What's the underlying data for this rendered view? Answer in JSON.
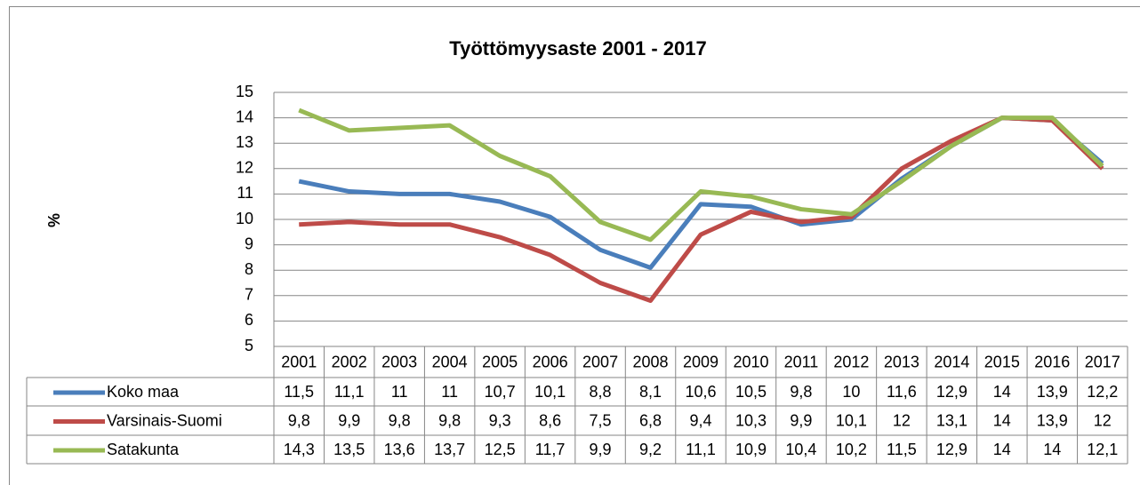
{
  "chart_data": {
    "type": "line",
    "title": "Työttömyysaste 2001 - 2017",
    "y_label": "%",
    "categories": [
      "2001",
      "2002",
      "2003",
      "2004",
      "2005",
      "2006",
      "2007",
      "2008",
      "2009",
      "2010",
      "2011",
      "2012",
      "2013",
      "2014",
      "2015",
      "2016",
      "2017"
    ],
    "ylim": [
      5,
      15
    ],
    "yticks": [
      5,
      6,
      7,
      8,
      9,
      10,
      11,
      12,
      13,
      14,
      15
    ],
    "grid": true,
    "series": [
      {
        "name": "Koko maa",
        "color": "#4a7ebb",
        "values": [
          11.5,
          11.1,
          11,
          11,
          10.7,
          10.1,
          8.8,
          8.1,
          10.6,
          10.5,
          9.8,
          10,
          11.6,
          12.9,
          14,
          13.9,
          12.2
        ],
        "value_labels": [
          "11,5",
          "11,1",
          "11",
          "11",
          "10,7",
          "10,1",
          "8,8",
          "8,1",
          "10,6",
          "10,5",
          "9,8",
          "10",
          "11,6",
          "12,9",
          "14",
          "13,9",
          "12,2"
        ]
      },
      {
        "name": "Varsinais-Suomi",
        "color": "#be4b48",
        "values": [
          9.8,
          9.9,
          9.8,
          9.8,
          9.3,
          8.6,
          7.5,
          6.8,
          9.4,
          10.3,
          9.9,
          10.1,
          12,
          13.1,
          14,
          13.9,
          12
        ],
        "value_labels": [
          "9,8",
          "9,9",
          "9,8",
          "9,8",
          "9,3",
          "8,6",
          "7,5",
          "6,8",
          "9,4",
          "10,3",
          "9,9",
          "10,1",
          "12",
          "13,1",
          "14",
          "13,9",
          "12"
        ]
      },
      {
        "name": "Satakunta",
        "color": "#98b954",
        "values": [
          14.3,
          13.5,
          13.6,
          13.7,
          12.5,
          11.7,
          9.9,
          9.2,
          11.1,
          10.9,
          10.4,
          10.2,
          11.5,
          12.9,
          14,
          14,
          12.1
        ],
        "value_labels": [
          "14,3",
          "13,5",
          "13,6",
          "13,7",
          "12,5",
          "11,7",
          "9,9",
          "9,2",
          "11,1",
          "10,9",
          "10,4",
          "10,2",
          "11,5",
          "12,9",
          "14",
          "14",
          "12,1"
        ]
      }
    ]
  }
}
